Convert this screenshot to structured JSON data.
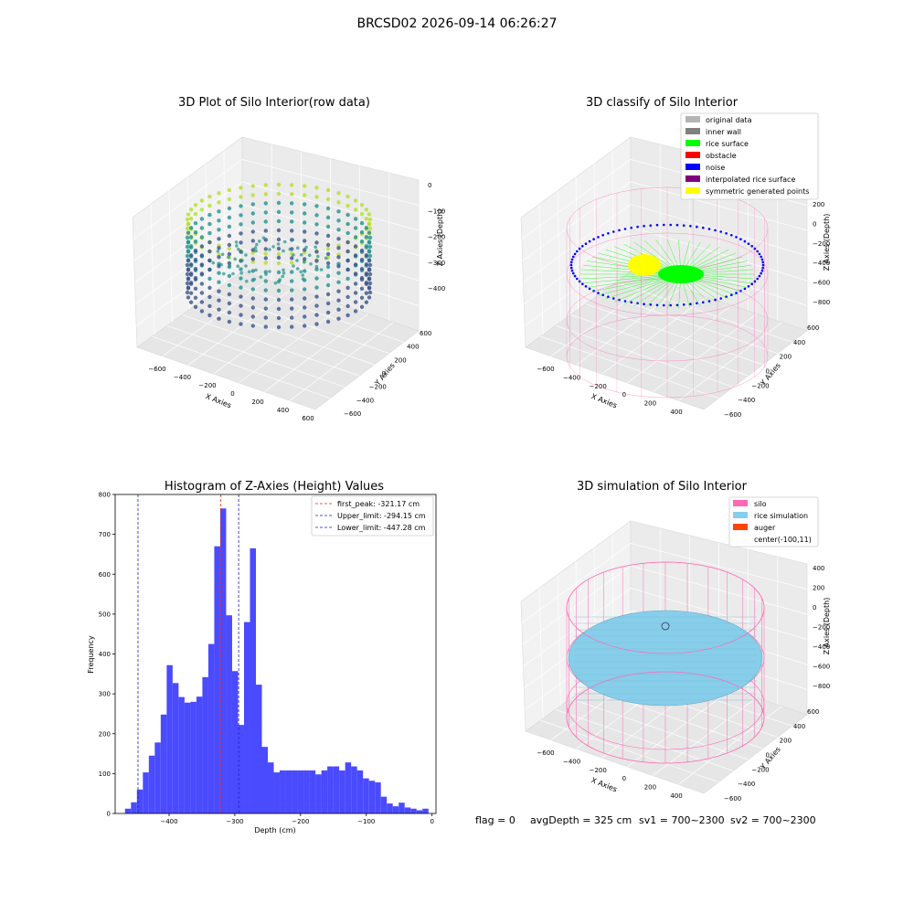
{
  "suptitle": "BRCSD02 2026-09-14 06:26:27",
  "colors": {
    "hist_bar": "#4a4aff",
    "first_peak": "#d62728",
    "limits": "#1f1fcc",
    "silo": "#ff69b4",
    "rice": "#87ceeb",
    "auger": "#ff4500",
    "rice_surface": "#00ff00",
    "noise": "#0000ff",
    "yellow": "#ffff00",
    "viridis_low": "#3b528b",
    "viridis_mid": "#21918c",
    "viridis_high": "#b5de2b"
  },
  "chart_data": [
    {
      "id": "raw",
      "type": "scatter",
      "title": "3D Plot of Silo Interior(row data)",
      "xlabel": "X Axies",
      "ylabel": "Y Axies",
      "zlabel": "Z Axies (Depth)",
      "x_ticks": [
        "-600",
        "-400",
        "-200",
        "0",
        "200",
        "400",
        "600"
      ],
      "y_ticks": [
        "-600",
        "-400",
        "-200",
        "0",
        "200",
        "400",
        "600"
      ],
      "z_ticks": [
        "0",
        "-100",
        "-200",
        "-300",
        "-400"
      ],
      "legend": []
    },
    {
      "id": "classify",
      "type": "scatter",
      "title": "3D classify of Silo Interior",
      "xlabel": "X Axies",
      "ylabel": "Y Axies",
      "zlabel": "Z Axies (Depth)",
      "x_ticks": [
        "-600",
        "-400",
        "-200",
        "0",
        "200",
        "400"
      ],
      "y_ticks": [
        "-600",
        "-400",
        "-200",
        "0",
        "200",
        "400",
        "600"
      ],
      "z_ticks": [
        "200",
        "0",
        "-200",
        "-400",
        "-600",
        "-800"
      ],
      "legend": [
        {
          "label": "original data",
          "color": "#b4b4b4"
        },
        {
          "label": "inner wall",
          "color": "#808080"
        },
        {
          "label": "rice surface",
          "color": "#00ff00"
        },
        {
          "label": "obstacle",
          "color": "#ff0000"
        },
        {
          "label": "noise",
          "color": "#0000ff"
        },
        {
          "label": "interpolated rice surface",
          "color": "#800080"
        },
        {
          "label": "symmetric generated points",
          "color": "#ffff00"
        }
      ]
    },
    {
      "id": "histogram",
      "type": "bar",
      "title": "Histogram of Z-Axies (Height) Values",
      "xlabel": "Depth (cm)",
      "ylabel": "Frequency",
      "xlim": [
        -482,
        6
      ],
      "ylim": [
        0,
        800
      ],
      "x_ticks": [
        -400,
        -300,
        -200,
        -100,
        0
      ],
      "y_ticks": [
        0,
        100,
        200,
        300,
        400,
        500,
        600,
        700,
        800
      ],
      "bin_start": -467,
      "bin_width": 9.05,
      "values": [
        12,
        28,
        60,
        103,
        145,
        178,
        248,
        372,
        327,
        292,
        278,
        280,
        293,
        342,
        425,
        670,
        765,
        497,
        357,
        222,
        480,
        665,
        323,
        167,
        128,
        103,
        108,
        108,
        108,
        108,
        108,
        108,
        98,
        108,
        118,
        118,
        108,
        128,
        118,
        108,
        88,
        82,
        78,
        42,
        25,
        18,
        27,
        15,
        12,
        8,
        12
      ],
      "vlines": [
        {
          "label": "first_peak: -321.17 cm",
          "x": -321.17,
          "color": "#d62728"
        },
        {
          "label": "Upper_limit: -294.15 cm",
          "x": -294.15,
          "color": "#1f1fcc"
        },
        {
          "label": "Lower_limit: -447.28 cm",
          "x": -447.28,
          "color": "#1f1fcc"
        }
      ]
    },
    {
      "id": "simulation",
      "type": "surface",
      "title": "3D simulation of Silo Interior",
      "xlabel": "X Axies",
      "ylabel": "Y Axies",
      "zlabel": "Z Axies (Depth)",
      "x_ticks": [
        "-600",
        "-400",
        "-200",
        "0",
        "200",
        "400"
      ],
      "y_ticks": [
        "-600",
        "-400",
        "-200",
        "0",
        "200",
        "400",
        "600"
      ],
      "z_ticks": [
        "400",
        "200",
        "0",
        "-200",
        "-400",
        "-600",
        "-800"
      ],
      "legend": [
        {
          "label": "silo",
          "color": "#ff69b4"
        },
        {
          "label": "rice simulation",
          "color": "#87ceeb"
        },
        {
          "label": "auger",
          "color": "#ff4500"
        },
        {
          "label": "center(-100,11)",
          "color": ""
        }
      ]
    }
  ],
  "status": {
    "flag": "flag = 0",
    "avg_depth": "avgDepth = 325 cm",
    "sv1": "sv1 = 700~2300",
    "sv2": "sv2 = 700~2300"
  }
}
